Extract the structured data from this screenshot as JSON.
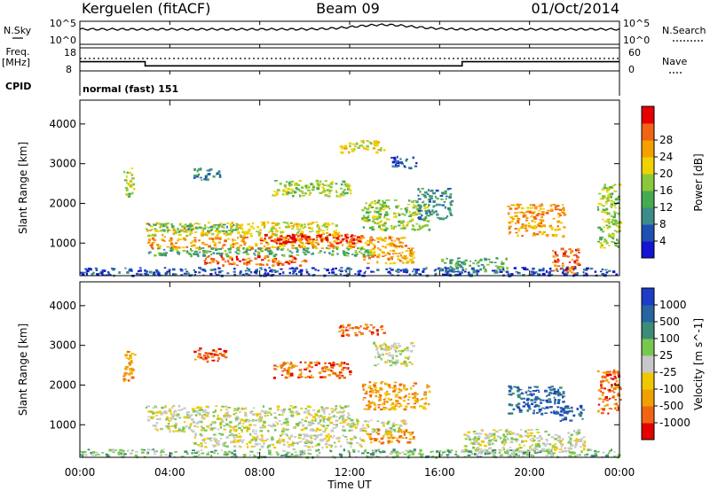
{
  "header": {
    "title_left": "Kerguelen (fitACF)",
    "title_center": "Beam 09",
    "title_right": "01/Oct/2014"
  },
  "status_panels": {
    "nsky_label": "N.Sky",
    "nsky_ticks": [
      "10^5",
      "10^0"
    ],
    "nsearch_label": "N.Search",
    "nsearch_ticks": [
      "10^5",
      "10^0"
    ],
    "freq_label_1": "Freq.",
    "freq_label_2": "[MHz]",
    "freq_ticks": [
      "18",
      "8"
    ],
    "nave_label": "Nave",
    "nave_ticks": [
      "60",
      "0"
    ],
    "cpid_label": "CPID",
    "cpid_value": "normal (fast) 151",
    "frequency_series": {
      "x_hours": [
        0,
        2.9,
        2.9,
        17.0,
        17.0,
        24
      ],
      "freq_mhz": [
        12.0,
        12.0,
        10.2,
        10.2,
        12.0,
        12.0
      ]
    }
  },
  "chart_data": [
    {
      "type": "heatmap",
      "parameter": "Power",
      "ylabel": "Slant Range [km]",
      "yticks": [
        1000,
        2000,
        3000,
        4000
      ],
      "ylim": [
        180,
        4600
      ],
      "xlim": [
        0,
        24
      ],
      "colorbar": {
        "label": "Power [dB]",
        "ticks": [
          "4",
          "8",
          "12",
          "16",
          "20",
          "24",
          "28"
        ],
        "colors": [
          "#1414d2",
          "#1e50b4",
          "#3c8c8c",
          "#46aa50",
          "#8cc83c",
          "#f0d200",
          "#f5a000",
          "#f06414",
          "#e60000"
        ]
      },
      "regions": [
        {
          "x0": 2.9,
          "x1": 11.5,
          "y0": 1200,
          "y1": 1550,
          "level": 5
        },
        {
          "x0": 3.0,
          "x1": 7.0,
          "y0": 1300,
          "y1": 1500,
          "level": 3
        },
        {
          "x0": 3.0,
          "x1": 14.5,
          "y0": 880,
          "y1": 1180,
          "level": 6
        },
        {
          "x0": 8.0,
          "x1": 12.5,
          "y0": 1000,
          "y1": 1250,
          "level": 8
        },
        {
          "x0": 3.0,
          "x1": 13.0,
          "y0": 700,
          "y1": 900,
          "level": 3
        },
        {
          "x0": 5.5,
          "x1": 10.0,
          "y0": 450,
          "y1": 700,
          "level": 7
        },
        {
          "x0": 12.5,
          "x1": 14.8,
          "y0": 500,
          "y1": 900,
          "level": 6
        },
        {
          "x0": 12.5,
          "x1": 15.5,
          "y0": 1350,
          "y1": 2100,
          "level": 4
        },
        {
          "x0": 15.0,
          "x1": 16.5,
          "y0": 1600,
          "y1": 2400,
          "level": 2
        },
        {
          "x0": 16.0,
          "x1": 19.0,
          "y0": 300,
          "y1": 650,
          "level": 3
        },
        {
          "x0": 11.5,
          "x1": 13.5,
          "y0": 3300,
          "y1": 3600,
          "level": 5
        },
        {
          "x0": 13.8,
          "x1": 15.0,
          "y0": 2900,
          "y1": 3200,
          "level": 1
        },
        {
          "x0": 8.5,
          "x1": 12.0,
          "y0": 2200,
          "y1": 2600,
          "level": 4
        },
        {
          "x0": 5.0,
          "x1": 6.2,
          "y0": 2600,
          "y1": 2900,
          "level": 2
        },
        {
          "x0": 1.9,
          "x1": 2.4,
          "y0": 2200,
          "y1": 2900,
          "level": 4
        },
        {
          "x0": 19.0,
          "x1": 21.5,
          "y0": 1200,
          "y1": 2000,
          "level": 6
        },
        {
          "x0": 21.0,
          "x1": 22.2,
          "y0": 250,
          "y1": 900,
          "level": 7
        },
        {
          "x0": 23.0,
          "x1": 24.0,
          "y0": 900,
          "y1": 2500,
          "level": 4
        },
        {
          "x0": 0.0,
          "x1": 24.0,
          "y0": 200,
          "y1": 400,
          "level": 1
        }
      ]
    },
    {
      "type": "heatmap",
      "parameter": "Velocity",
      "ylabel": "Slant Range [km]",
      "yticks": [
        1000,
        2000,
        3000,
        4000
      ],
      "ylim": [
        180,
        4600
      ],
      "xlim": [
        0,
        24
      ],
      "xticks": [
        "00:00",
        "04:00",
        "08:00",
        "12:00",
        "16:00",
        "20:00",
        "00:00"
      ],
      "xlabel": "Time UT",
      "colorbar": {
        "label": "Velocity [m s^-1]",
        "ticks": [
          "1000",
          "500",
          "100",
          "25",
          "-25",
          "-100",
          "-500",
          "-1000"
        ],
        "colors": [
          "#1e3cc8",
          "#2864a0",
          "#3c8c78",
          "#78c850",
          "#c8c8c8",
          "#f0c800",
          "#f0a000",
          "#f06414",
          "#e60000"
        ]
      },
      "regions": [
        {
          "x0": 2.9,
          "x1": 12.0,
          "y0": 1150,
          "y1": 1500,
          "level": 4
        },
        {
          "x0": 3.0,
          "x1": 14.5,
          "y0": 850,
          "y1": 1150,
          "level": 4
        },
        {
          "x0": 5.0,
          "x1": 12.5,
          "y0": 450,
          "y1": 800,
          "level": 4
        },
        {
          "x0": 12.5,
          "x1": 15.5,
          "y0": 1400,
          "y1": 2100,
          "level": 6
        },
        {
          "x0": 8.5,
          "x1": 12.0,
          "y0": 2200,
          "y1": 2600,
          "level": 7
        },
        {
          "x0": 11.5,
          "x1": 13.5,
          "y0": 3250,
          "y1": 3550,
          "level": 7
        },
        {
          "x0": 13.0,
          "x1": 14.8,
          "y0": 2500,
          "y1": 3100,
          "level": 4
        },
        {
          "x0": 5.0,
          "x1": 6.5,
          "y0": 2600,
          "y1": 2950,
          "level": 7
        },
        {
          "x0": 1.9,
          "x1": 2.4,
          "y0": 2100,
          "y1": 2900,
          "level": 6
        },
        {
          "x0": 19.0,
          "x1": 21.5,
          "y0": 1300,
          "y1": 2000,
          "level": 1
        },
        {
          "x0": 21.3,
          "x1": 22.4,
          "y0": 1100,
          "y1": 1500,
          "level": 1
        },
        {
          "x0": 17.0,
          "x1": 22.5,
          "y0": 300,
          "y1": 900,
          "level": 4
        },
        {
          "x0": 23.0,
          "x1": 24.0,
          "y0": 1300,
          "y1": 2400,
          "level": 7
        },
        {
          "x0": 12.5,
          "x1": 14.8,
          "y0": 550,
          "y1": 900,
          "level": 6
        },
        {
          "x0": 0.0,
          "x1": 24.0,
          "y0": 200,
          "y1": 400,
          "level": 3
        }
      ]
    }
  ]
}
